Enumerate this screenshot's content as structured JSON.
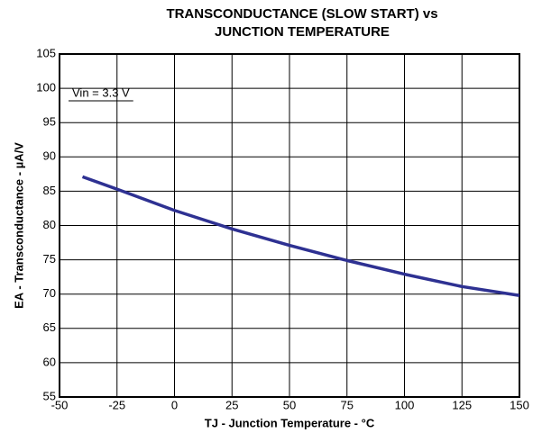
{
  "chart_data": {
    "type": "line",
    "title": [
      "TRANSCONDUCTANCE (SLOW START) vs",
      "JUNCTION TEMPERATURE"
    ],
    "x_label": "TJ - Junction Temperature - °C",
    "y_label": "EA - Transconductance - µA/V",
    "annotation": "Vin = 3.3 V",
    "x": [
      -40,
      -25,
      0,
      25,
      50,
      75,
      100,
      125,
      150
    ],
    "series": [
      {
        "name": "Vin = 3.3 V",
        "color": "#2e3192",
        "values": [
          87.1,
          85.3,
          82.2,
          79.5,
          77.1,
          74.9,
          72.9,
          71.1,
          69.8
        ]
      }
    ],
    "xlim": [
      -50,
      150
    ],
    "xticks": [
      -50,
      -25,
      0,
      25,
      50,
      75,
      100,
      125,
      150
    ],
    "ylim": [
      55,
      105
    ],
    "yticks": [
      55,
      60,
      65,
      70,
      75,
      80,
      85,
      90,
      95,
      100,
      105
    ],
    "grid": true
  }
}
